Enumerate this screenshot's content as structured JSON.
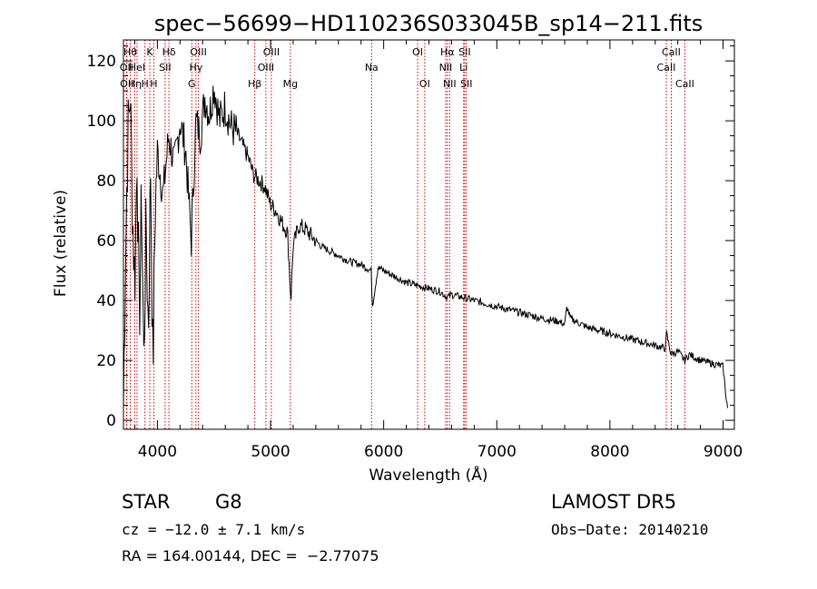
{
  "chart_data": {
    "type": "line",
    "title": "spec−56699−HD110236S033045B_sp14−211.fits",
    "xlabel": "Wavelength (Å)",
    "ylabel": "Flux (relative)",
    "xlim": [
      3700,
      9100
    ],
    "ylim": [
      -3,
      127
    ],
    "xticks": [
      4000,
      5000,
      6000,
      7000,
      8000,
      9000
    ],
    "yticks": [
      0,
      20,
      40,
      60,
      80,
      100,
      120
    ],
    "grid": false,
    "series": [
      {
        "x": [
          3700,
          3720,
          3740,
          3760,
          3780,
          3800,
          3820,
          3840,
          3860,
          3880,
          3900,
          3920,
          3940,
          3960,
          3980,
          4000,
          4050,
          4100,
          4150,
          4200,
          4250,
          4300,
          4340,
          4380,
          4420,
          4460,
          4500,
          4550,
          4600,
          4650,
          4700,
          4750,
          4800,
          4850,
          4900,
          4950,
          5000,
          5050,
          5100,
          5150,
          5180,
          5200,
          5250,
          5300,
          5350,
          5400,
          5450,
          5500,
          5600,
          5700,
          5800,
          5890,
          5900,
          5950,
          6000,
          6100,
          6200,
          6300,
          6400,
          6500,
          6563,
          6600,
          6700,
          6800,
          7000,
          7200,
          7400,
          7550,
          7600,
          7620,
          7650,
          7700,
          7800,
          8000,
          8200,
          8400,
          8490,
          8500,
          8540,
          8600,
          8660,
          8700,
          8800,
          8900,
          9000,
          9020,
          9040
        ],
        "y": [
          5,
          60,
          95,
          110,
          70,
          45,
          90,
          30,
          75,
          20,
          65,
          30,
          85,
          15,
          70,
          90,
          75,
          95,
          85,
          100,
          90,
          60,
          100,
          95,
          108,
          102,
          112,
          100,
          105,
          98,
          96,
          92,
          88,
          82,
          80,
          78,
          72,
          70,
          66,
          63,
          40,
          58,
          65,
          64,
          62,
          60,
          58,
          57,
          55,
          53,
          52,
          50,
          38,
          51,
          50,
          48,
          46,
          45,
          44,
          43,
          41,
          42,
          41,
          40,
          38,
          36,
          34,
          33,
          32,
          38,
          34,
          33,
          31,
          29,
          27,
          25,
          24,
          29,
          22,
          23,
          20,
          22,
          20,
          19,
          18,
          10,
          4
        ]
      }
    ],
    "line_labels": [
      {
        "lambda": 3727,
        "label": "OII",
        "row": 2
      },
      {
        "lambda": 3730,
        "label": "OII",
        "row": 3
      },
      {
        "lambda": 3760,
        "label": "Hθ",
        "row": 1
      },
      {
        "lambda": 3800,
        "label": "Hη",
        "row": 3
      },
      {
        "lambda": 3820,
        "label": "HeI",
        "row": 2
      },
      {
        "lambda": 3890,
        "label": "H",
        "row": 3
      },
      {
        "lambda": 3933,
        "label": "K",
        "row": 1
      },
      {
        "lambda": 3968,
        "label": "H",
        "row": 3
      },
      {
        "lambda": 4068,
        "label": "SII",
        "row": 2
      },
      {
        "lambda": 4102,
        "label": "Hδ",
        "row": 1
      },
      {
        "lambda": 4304,
        "label": "G",
        "row": 3
      },
      {
        "lambda": 4341,
        "label": "Hγ",
        "row": 2
      },
      {
        "lambda": 4363,
        "label": "OIII",
        "row": 1
      },
      {
        "lambda": 4861,
        "label": "Hβ",
        "row": 3
      },
      {
        "lambda": 4959,
        "label": "OIII",
        "row": 2
      },
      {
        "lambda": 5007,
        "label": "OIII",
        "row": 1
      },
      {
        "lambda": 5175,
        "label": "Mg",
        "row": 3
      },
      {
        "lambda": 5893,
        "label": "Na",
        "row": 2
      },
      {
        "lambda": 6300,
        "label": "OI",
        "row": 1
      },
      {
        "lambda": 6363,
        "label": "OI",
        "row": 3
      },
      {
        "lambda": 6548,
        "label": "NII",
        "row": 2
      },
      {
        "lambda": 6563,
        "label": "Hα",
        "row": 1
      },
      {
        "lambda": 6583,
        "label": "NII",
        "row": 3
      },
      {
        "lambda": 6707,
        "label": "Li",
        "row": 2
      },
      {
        "lambda": 6716,
        "label": "SII",
        "row": 1
      },
      {
        "lambda": 6731,
        "label": "SII",
        "row": 3
      },
      {
        "lambda": 8498,
        "label": "CaII",
        "row": 2
      },
      {
        "lambda": 8542,
        "label": "CaII",
        "row": 1
      },
      {
        "lambda": 8662,
        "label": "CaII",
        "row": 3
      }
    ]
  },
  "info": {
    "class": "STAR",
    "subclass": "G8",
    "survey": "LAMOST DR5",
    "cz": "cz = −12.0 ± 7.1 km/s",
    "obs_date": "Obs−Date: 20140210",
    "coords": "RA = 164.00144, DEC =  −2.77075"
  },
  "colors": {
    "spectrum": "#000000",
    "line_markers": "#cc0000",
    "axes": "#000000"
  }
}
